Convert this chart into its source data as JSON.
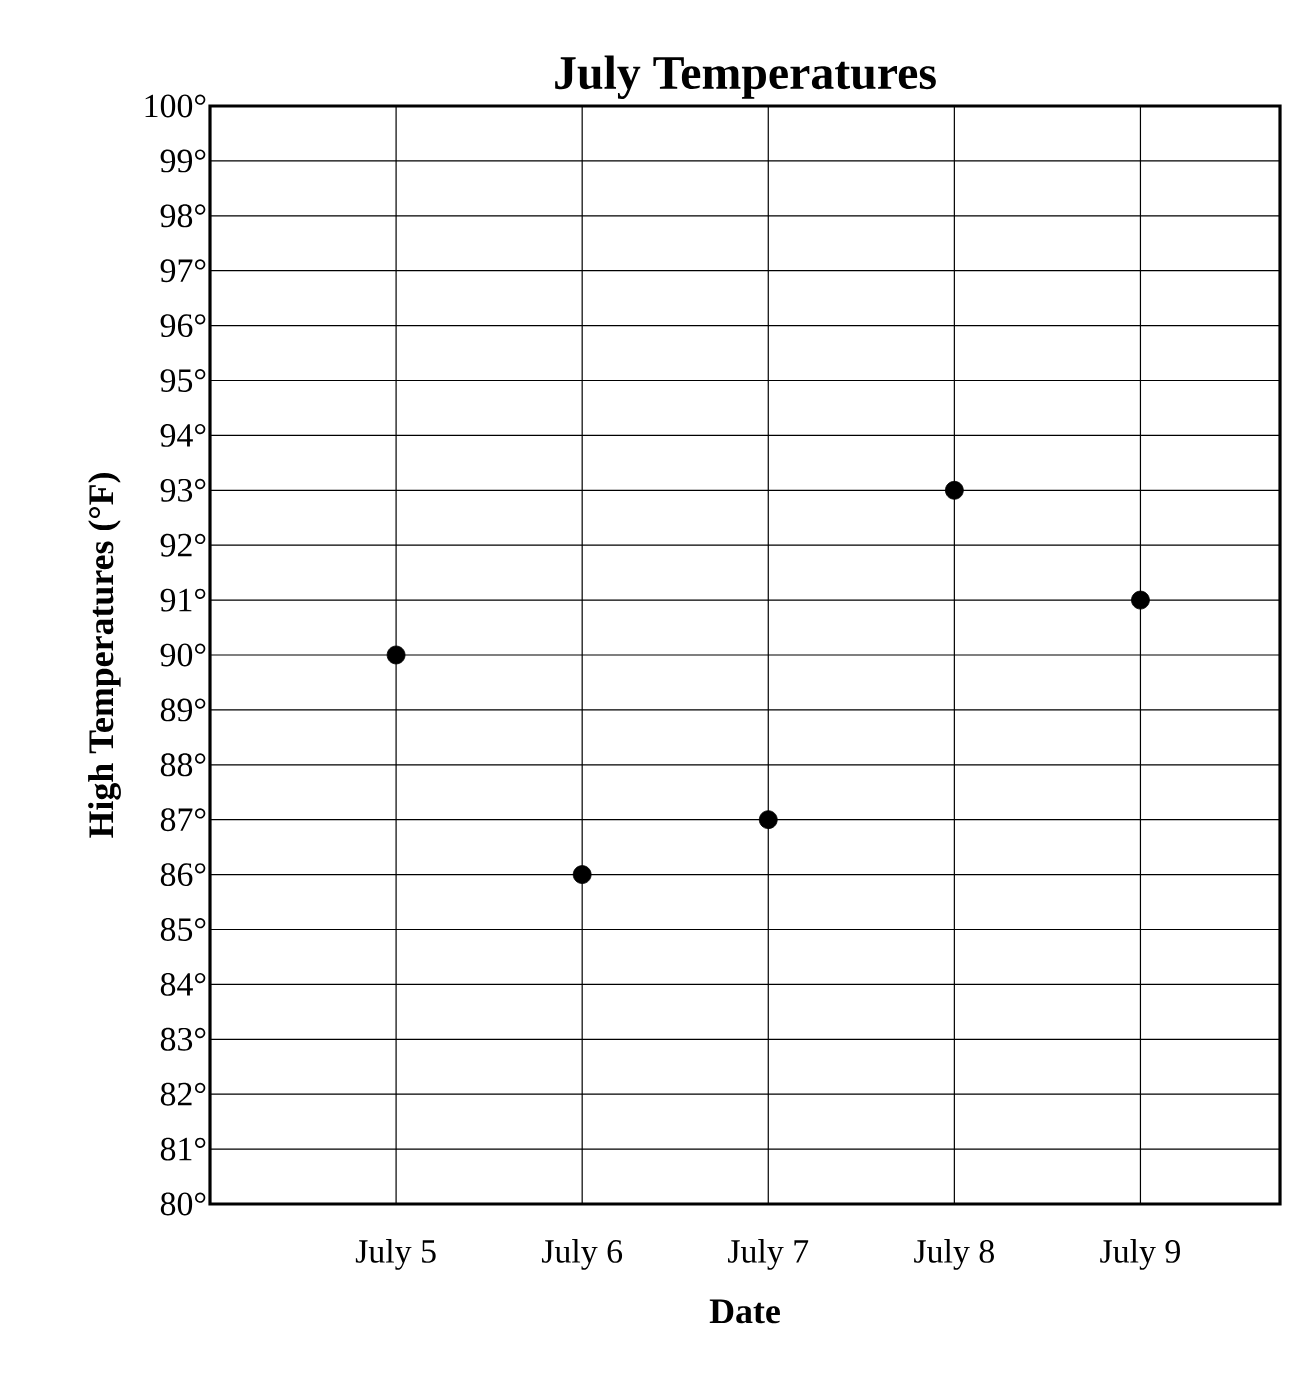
{
  "chart_data": {
    "type": "scatter",
    "title": "July Temperatures",
    "xlabel": "Date",
    "ylabel": "High Temperatures (°F)",
    "categories": [
      "July 5",
      "July 6",
      "July 7",
      "July 8",
      "July 9"
    ],
    "series": [
      {
        "color": "#000000",
        "values": [
          90,
          86,
          87,
          93,
          91
        ]
      }
    ],
    "ylim": [
      80,
      100
    ],
    "yticks": [
      {
        "value": 80,
        "label": "80°"
      },
      {
        "value": 81,
        "label": "81°"
      },
      {
        "value": 82,
        "label": "82°"
      },
      {
        "value": 83,
        "label": "83°"
      },
      {
        "value": 84,
        "label": "84°"
      },
      {
        "value": 85,
        "label": "85°"
      },
      {
        "value": 86,
        "label": "86°"
      },
      {
        "value": 87,
        "label": "87°"
      },
      {
        "value": 88,
        "label": "88°"
      },
      {
        "value": 89,
        "label": "89°"
      },
      {
        "value": 90,
        "label": "90°"
      },
      {
        "value": 91,
        "label": "91°"
      },
      {
        "value": 92,
        "label": "92°"
      },
      {
        "value": 93,
        "label": "93°"
      },
      {
        "value": 94,
        "label": "94°"
      },
      {
        "value": 95,
        "label": "95°"
      },
      {
        "value": 96,
        "label": "96°"
      },
      {
        "value": 97,
        "label": "97°"
      },
      {
        "value": 98,
        "label": "98°"
      },
      {
        "value": 99,
        "label": "99°"
      },
      {
        "value": 100,
        "label": "100°"
      }
    ],
    "grid": true,
    "marker": "circle"
  }
}
